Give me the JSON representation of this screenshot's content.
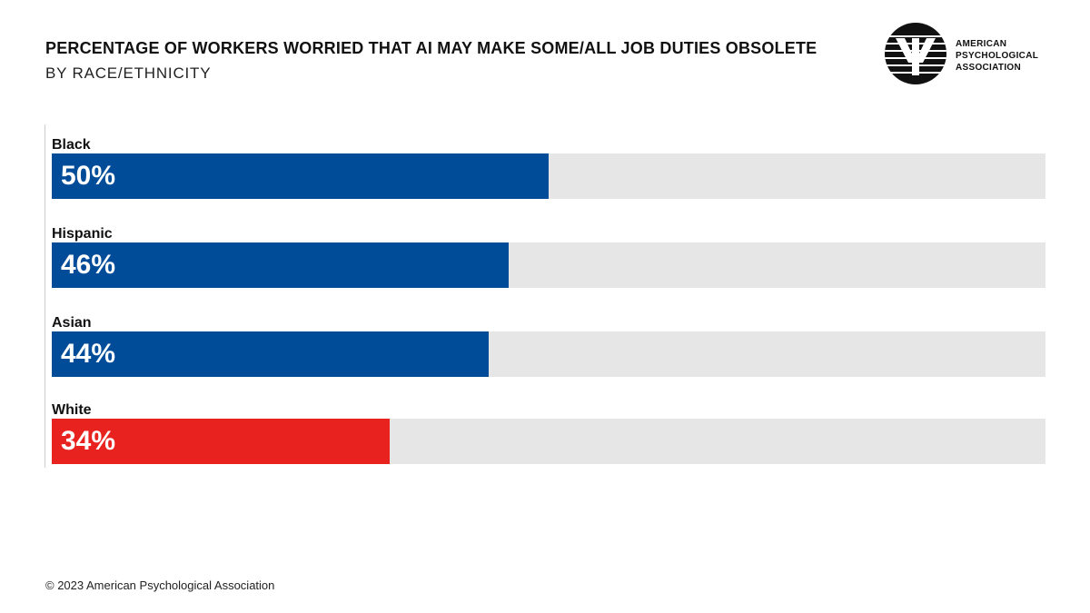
{
  "chart_data": {
    "type": "bar",
    "title": "PERCENTAGE OF WORKERS WORRIED THAT AI MAY MAKE SOME/ALL JOB DUTIES OBSOLETE",
    "subtitle": "BY RACE/ETHNICITY",
    "categories": [
      "Black",
      "Hispanic",
      "Asian",
      "White"
    ],
    "values": [
      50,
      46,
      44,
      34
    ],
    "value_labels": [
      "50%",
      "46%",
      "44%",
      "34%"
    ],
    "colors": [
      "#004c99",
      "#004c99",
      "#004c99",
      "#e8231f"
    ],
    "xlim": [
      0,
      100
    ],
    "orientation": "horizontal"
  },
  "logo": {
    "lines": [
      "AMERICAN",
      "PSYCHOLOGICAL",
      "ASSOCIATION"
    ]
  },
  "footer": "© 2023 American Psychological Association"
}
